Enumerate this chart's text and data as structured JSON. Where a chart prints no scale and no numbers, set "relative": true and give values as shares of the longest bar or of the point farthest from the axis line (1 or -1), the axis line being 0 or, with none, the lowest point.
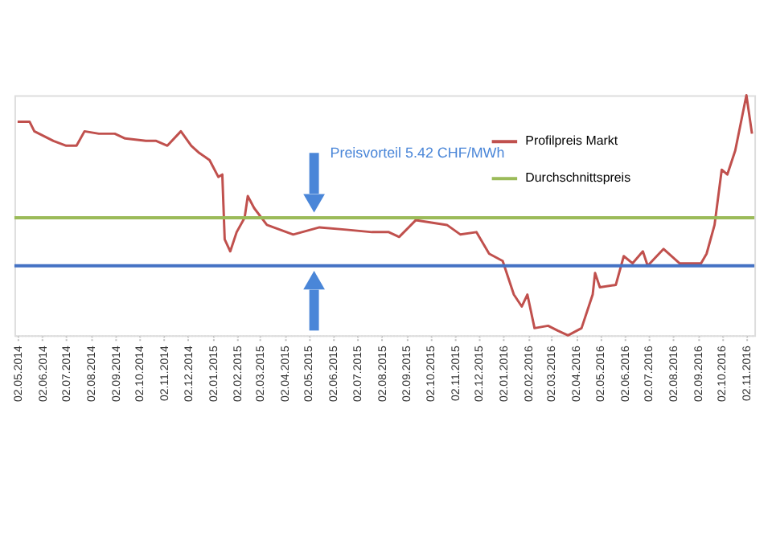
{
  "chart_data": {
    "type": "line",
    "relative": true,
    "x": [
      "2014-05-02",
      "2014-05-17",
      "2014-05-23",
      "2014-06-16",
      "2014-07-02",
      "2014-07-15",
      "2014-07-25",
      "2014-08-12",
      "2014-09-01",
      "2014-09-14",
      "2014-10-10",
      "2014-10-23",
      "2014-11-06",
      "2014-11-23",
      "2014-12-06",
      "2014-12-16",
      "2014-12-29",
      "2015-01-09",
      "2015-01-14",
      "2015-01-17",
      "2015-01-24",
      "2015-02-01",
      "2015-02-11",
      "2015-02-15",
      "2015-02-23",
      "2015-03-11",
      "2015-04-13",
      "2015-05-16",
      "2015-06-19",
      "2015-07-21",
      "2015-08-11",
      "2015-08-24",
      "2015-09-14",
      "2015-10-23",
      "2015-11-09",
      "2015-11-29",
      "2015-12-15",
      "2016-01-01",
      "2016-01-15",
      "2016-01-25",
      "2016-02-01",
      "2016-02-10",
      "2016-02-27",
      "2016-03-10",
      "2016-03-23",
      "2016-04-09",
      "2016-04-23",
      "2016-04-26",
      "2016-05-02",
      "2016-05-22",
      "2016-06-01",
      "2016-06-12",
      "2016-06-25",
      "2016-07-01",
      "2016-07-21",
      "2016-08-10",
      "2016-09-06",
      "2016-09-13",
      "2016-09-23",
      "2016-10-02",
      "2016-10-09",
      "2016-10-19",
      "2016-11-02",
      "2016-11-09"
    ],
    "series": [
      {
        "name": "Profilpreis Markt",
        "color": "#c0504d",
        "values": [
          0.89,
          0.89,
          0.85,
          0.81,
          0.79,
          0.79,
          0.85,
          0.84,
          0.84,
          0.82,
          0.81,
          0.81,
          0.79,
          0.85,
          0.79,
          0.76,
          0.73,
          0.66,
          0.67,
          0.4,
          0.35,
          0.43,
          0.49,
          0.58,
          0.53,
          0.46,
          0.42,
          0.45,
          0.44,
          0.43,
          0.43,
          0.41,
          0.48,
          0.46,
          0.42,
          0.43,
          0.34,
          0.31,
          0.17,
          0.12,
          0.17,
          0.03,
          0.04,
          0.02,
          0.0,
          0.03,
          0.17,
          0.26,
          0.2,
          0.21,
          0.33,
          0.3,
          0.35,
          0.29,
          0.36,
          0.3,
          0.3,
          0.34,
          0.46,
          0.69,
          0.67,
          0.77,
          1.0,
          0.84
        ]
      }
    ],
    "ref_lines": [
      {
        "axis": "y",
        "value": 0.29,
        "color": "#4472c4"
      },
      {
        "axis": "y",
        "value": 0.49,
        "label": "Durchschnittspreis",
        "color": "#9bbb59"
      }
    ],
    "annotations": [
      "Preisvorteil 5.42 CHF/MWh"
    ],
    "xlim": [
      "2014-04-28",
      "2016-11-12"
    ],
    "xticks": [
      {
        "value": "2014-05-02",
        "label": "02.05.2014"
      },
      {
        "value": "2014-06-02",
        "label": "02.06.2014"
      },
      {
        "value": "2014-07-02",
        "label": "02.07.2014"
      },
      {
        "value": "2014-08-02",
        "label": "02.08.2014"
      },
      {
        "value": "2014-09-02",
        "label": "02.09.2014"
      },
      {
        "value": "2014-10-02",
        "label": "02.10.2014"
      },
      {
        "value": "2014-11-02",
        "label": "02.11.2014"
      },
      {
        "value": "2014-12-02",
        "label": "02.12.2014"
      },
      {
        "value": "2015-01-02",
        "label": "02.01.2015"
      },
      {
        "value": "2015-02-02",
        "label": "02.02.2015"
      },
      {
        "value": "2015-03-02",
        "label": "02.03.2015"
      },
      {
        "value": "2015-04-02",
        "label": "02.04.2015"
      },
      {
        "value": "2015-05-02",
        "label": "02.05.2015"
      },
      {
        "value": "2015-06-02",
        "label": "02.06.2015"
      },
      {
        "value": "2015-07-02",
        "label": "02.07.2015"
      },
      {
        "value": "2015-08-02",
        "label": "02.08.2015"
      },
      {
        "value": "2015-09-02",
        "label": "02.09.2015"
      },
      {
        "value": "2015-10-02",
        "label": "02.10.2015"
      },
      {
        "value": "2015-11-02",
        "label": "02.11.2015"
      },
      {
        "value": "2015-12-02",
        "label": "02.12.2015"
      },
      {
        "value": "2016-01-02",
        "label": "02.01.2016"
      },
      {
        "value": "2016-02-02",
        "label": "02.02.2016"
      },
      {
        "value": "2016-03-02",
        "label": "02.03.2016"
      },
      {
        "value": "2016-04-02",
        "label": "02.04.2016"
      },
      {
        "value": "2016-05-02",
        "label": "02.05.2016"
      },
      {
        "value": "2016-06-02",
        "label": "02.06.2016"
      },
      {
        "value": "2016-07-02",
        "label": "02.07.2016"
      },
      {
        "value": "2016-08-02",
        "label": "02.08.2016"
      },
      {
        "value": "2016-09-02",
        "label": "02.09.2016"
      },
      {
        "value": "2016-10-02",
        "label": "02.10.2016"
      },
      {
        "value": "2016-11-02",
        "label": "02.11.2016"
      }
    ],
    "tick_labels": "x",
    "legend": "top right",
    "grid": false,
    "marker": "none"
  }
}
